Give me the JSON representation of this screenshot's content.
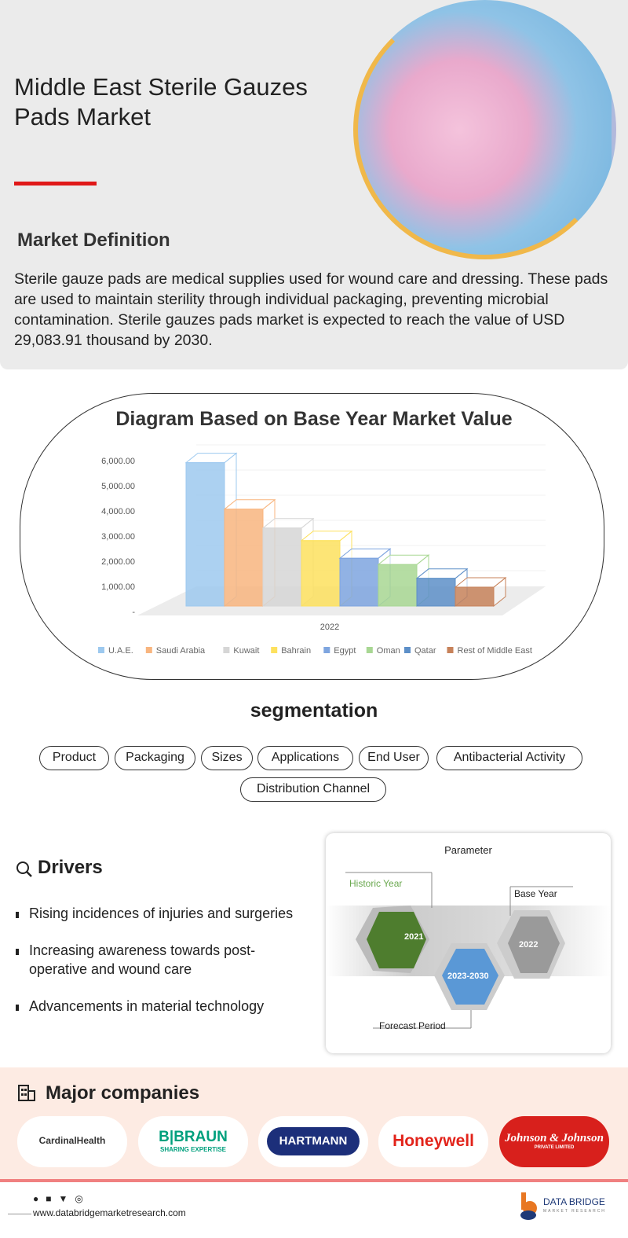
{
  "header": {
    "title": "Middle East Sterile Gauzes Pads Market"
  },
  "definition": {
    "heading": "Market Definition",
    "text": "Sterile gauze pads are medical supplies used for wound care and dressing. These pads are used to maintain sterility through individual packaging, preventing microbial contamination. Sterile gauzes pads market is expected to reach the value of USD 29,083.91 thousand by 2030."
  },
  "chart_data": {
    "type": "bar",
    "title": "Diagram Based on Base Year Market Value",
    "categories": [
      "2022"
    ],
    "series": [
      {
        "name": "U.A.E.",
        "values": [
          5700
        ],
        "color": "#9dc9ef"
      },
      {
        "name": "Saudi Arabia",
        "values": [
          3850
        ],
        "color": "#f8b57f"
      },
      {
        "name": "Kuwait",
        "values": [
          3100
        ],
        "color": "#d6d6d6"
      },
      {
        "name": "Bahrain",
        "values": [
          2600
        ],
        "color": "#fde15e"
      },
      {
        "name": "Egypt",
        "values": [
          1900
        ],
        "color": "#7ea5df"
      },
      {
        "name": "Oman",
        "values": [
          1650
        ],
        "color": "#a8d793"
      },
      {
        "name": "Qatar",
        "values": [
          1100
        ],
        "color": "#5d8fc8"
      },
      {
        "name": "Rest of Middle East",
        "values": [
          750
        ],
        "color": "#c7825a"
      }
    ],
    "yticks": [
      "-",
      "1,000.00",
      "2,000.00",
      "3,000.00",
      "4,000.00",
      "5,000.00",
      "6,000.00"
    ],
    "ylim": [
      0,
      6000
    ],
    "legend": "bottom",
    "grid": true,
    "style": "3d-clustered"
  },
  "segmentation": {
    "heading": "segmentation",
    "items": [
      "Product",
      "Packaging",
      "Sizes",
      "Applications",
      "End User",
      "Antibacterial Activity",
      "Distribution Channel"
    ]
  },
  "drivers": {
    "heading": "Drivers",
    "items": [
      "Rising incidences of injuries and surgeries",
      "Increasing awareness towards post-operative and wound care",
      "Advancements in material technology"
    ]
  },
  "parameter": {
    "title": "Parameter",
    "historic_label": "Historic Year",
    "historic": "2021",
    "base_label": "Base Year",
    "base": "2022",
    "forecast_label": "Forecast Period",
    "forecast": "2023-2030"
  },
  "companies": {
    "heading": "Major companies",
    "items": [
      "CardinalHealth",
      "B|BRAUN",
      "HARTMANN",
      "Honeywell",
      "Johnson & Johnson"
    ],
    "braun_tag": "SHARING EXPERTISE",
    "jj_tag": "PRIVATE LIMITED"
  },
  "footer": {
    "url": "www.databridgemarketresearch.com",
    "brand": "DATA BRIDGE",
    "brand_sub": "MARKET RESEARCH"
  }
}
